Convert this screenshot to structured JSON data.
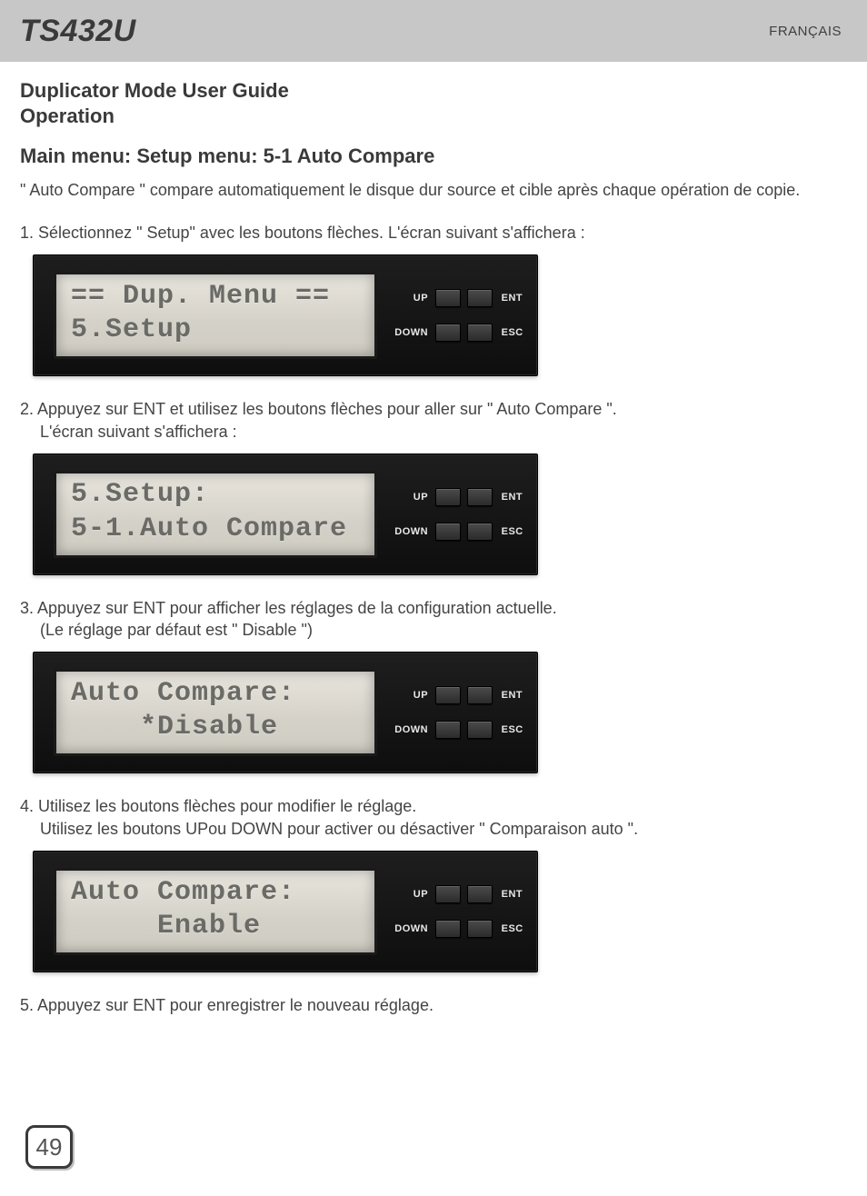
{
  "header": {
    "model": "TS432U",
    "language": "FRANÇAIS"
  },
  "titles": {
    "guide": "Duplicator Mode User Guide",
    "section": "Operation",
    "breadcrumb": "Main menu: Setup menu: 5-1 Auto Compare"
  },
  "intro": "\" Auto Compare \" compare automatiquement le disque dur source et cible après chaque opération de copie.",
  "steps": [
    {
      "num": "1.",
      "text": "Sélectionnez \" Setup\" avec les boutons flèches. L'écran suivant s'affichera :",
      "lcd": {
        "line1": "== Dup. Menu ==",
        "line2": "5.Setup"
      }
    },
    {
      "num": "2.",
      "text": "Appuyez sur ENT et utilisez les boutons flèches pour aller sur \" Auto Compare \".",
      "text2": "L'écran suivant s'affichera :",
      "lcd": {
        "line1": "5.Setup:",
        "line2": "5-1.Auto Compare"
      }
    },
    {
      "num": "3.",
      "text": "Appuyez sur ENT pour afficher les réglages de la configuration actuelle.",
      "text2": "(Le réglage par défaut est \" Disable \")",
      "lcd": {
        "line1": "Auto Compare:",
        "line2": "    *Disable"
      }
    },
    {
      "num": "4.",
      "text": "Utilisez les boutons flèches pour modifier le réglage.",
      "text2": "Utilisez les boutons UPou DOWN pour activer ou désactiver \" Comparaison auto \".",
      "lcd": {
        "line1": "Auto Compare:",
        "line2": "     Enable"
      }
    },
    {
      "num": "5.",
      "text": "Appuyez sur ENT pour enregistrer le nouveau réglage."
    }
  ],
  "buttons": {
    "up": "UP",
    "down": "DOWN",
    "ent": "ENT",
    "esc": "ESC"
  },
  "page_number": "49",
  "style": {
    "topbar_bg": "#c7c7c7",
    "text_color": "#404040",
    "heading_color": "#3a3a3a",
    "device_bg_top": "#1e1e1e",
    "device_bg_bottom": "#0e0e0e",
    "lcd_bg_top": "#e8e5dd",
    "lcd_bg_bottom": "#cfccc2",
    "lcd_text": "#6a6a66",
    "btn_label": "#e8e8e8",
    "pagenum_border": "#3a3a3a",
    "body_font_size": 18,
    "heading_font_size": 22,
    "model_font_size": 34,
    "lcd_font_size": 30
  }
}
